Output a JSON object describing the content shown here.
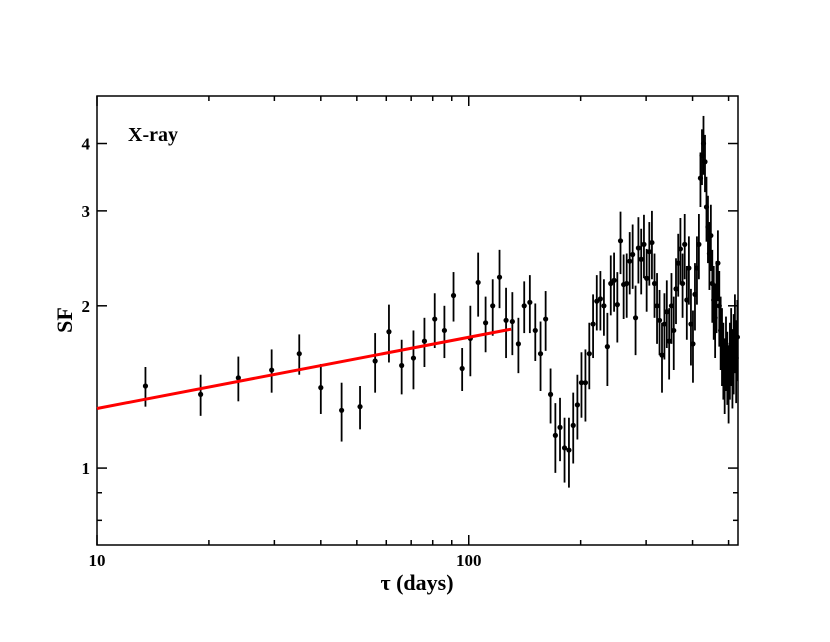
{
  "chart_data": {
    "type": "scatter",
    "annotation": "X-ray",
    "xlabel": "τ  (days)",
    "ylabel": "SF",
    "xscale": "log",
    "yscale": "log",
    "xlim": [
      10,
      530
    ],
    "ylim": [
      0.72,
      4.9
    ],
    "x_ticks": [
      10,
      100
    ],
    "y_ticks": [
      1,
      2,
      3,
      4
    ],
    "grid": false,
    "legend": "none",
    "colors": {
      "points": "#000000",
      "fit": "#ff0000"
    },
    "fit_line": {
      "x": [
        10,
        130
      ],
      "y": [
        1.29,
        1.81
      ]
    },
    "points": [
      {
        "x": 13.5,
        "y": 1.42,
        "e": 0.12
      },
      {
        "x": 19,
        "y": 1.37,
        "e": 0.12
      },
      {
        "x": 24,
        "y": 1.47,
        "e": 0.14
      },
      {
        "x": 29.5,
        "y": 1.52,
        "e": 0.14
      },
      {
        "x": 35,
        "y": 1.63,
        "e": 0.14
      },
      {
        "x": 40,
        "y": 1.41,
        "e": 0.15
      },
      {
        "x": 45.5,
        "y": 1.28,
        "e": 0.16
      },
      {
        "x": 51,
        "y": 1.3,
        "e": 0.12
      },
      {
        "x": 56,
        "y": 1.58,
        "e": 0.2
      },
      {
        "x": 61,
        "y": 1.79,
        "e": 0.22
      },
      {
        "x": 66,
        "y": 1.55,
        "e": 0.18
      },
      {
        "x": 71,
        "y": 1.6,
        "e": 0.2
      },
      {
        "x": 76,
        "y": 1.72,
        "e": 0.18
      },
      {
        "x": 81,
        "y": 1.89,
        "e": 0.22
      },
      {
        "x": 86,
        "y": 1.8,
        "e": 0.2
      },
      {
        "x": 91,
        "y": 2.09,
        "e": 0.22
      },
      {
        "x": 96,
        "y": 1.53,
        "e": 0.14
      },
      {
        "x": 101,
        "y": 1.74,
        "e": 0.26
      },
      {
        "x": 106,
        "y": 2.21,
        "e": 0.3
      },
      {
        "x": 111,
        "y": 1.86,
        "e": 0.22
      },
      {
        "x": 116,
        "y": 2.0,
        "e": 0.24
      },
      {
        "x": 121,
        "y": 2.26,
        "e": 0.28
      },
      {
        "x": 126,
        "y": 1.88,
        "e": 0.28
      },
      {
        "x": 131,
        "y": 1.87,
        "e": 0.25
      },
      {
        "x": 136,
        "y": 1.7,
        "e": 0.2
      },
      {
        "x": 141,
        "y": 2.0,
        "e": 0.22
      },
      {
        "x": 146,
        "y": 2.03,
        "e": 0.25
      },
      {
        "x": 151,
        "y": 1.8,
        "e": 0.22
      },
      {
        "x": 156,
        "y": 1.63,
        "e": 0.24
      },
      {
        "x": 161,
        "y": 1.89,
        "e": 0.24
      },
      {
        "x": 166,
        "y": 1.37,
        "e": 0.16
      },
      {
        "x": 171,
        "y": 1.15,
        "e": 0.17
      },
      {
        "x": 176,
        "y": 1.19,
        "e": 0.16
      },
      {
        "x": 181,
        "y": 1.09,
        "e": 0.15
      },
      {
        "x": 186,
        "y": 1.08,
        "e": 0.16
      },
      {
        "x": 191,
        "y": 1.2,
        "e": 0.18
      },
      {
        "x": 196,
        "y": 1.31,
        "e": 0.18
      },
      {
        "x": 201,
        "y": 1.44,
        "e": 0.2
      },
      {
        "x": 206,
        "y": 1.44,
        "e": 0.22
      },
      {
        "x": 211,
        "y": 1.63,
        "e": 0.23
      },
      {
        "x": 216,
        "y": 1.85,
        "e": 0.25
      },
      {
        "x": 221,
        "y": 2.04,
        "e": 0.24
      },
      {
        "x": 226,
        "y": 2.06,
        "e": 0.26
      },
      {
        "x": 231,
        "y": 2.0,
        "e": 0.24
      },
      {
        "x": 236,
        "y": 1.68,
        "e": 0.26
      },
      {
        "x": 241,
        "y": 2.2,
        "e": 0.28
      },
      {
        "x": 246,
        "y": 2.23,
        "e": 0.28
      },
      {
        "x": 251,
        "y": 2.01,
        "e": 0.3
      },
      {
        "x": 256,
        "y": 2.64,
        "e": 0.35
      },
      {
        "x": 261,
        "y": 2.19,
        "e": 0.3
      },
      {
        "x": 266,
        "y": 2.2,
        "e": 0.3
      },
      {
        "x": 271,
        "y": 2.42,
        "e": 0.32
      },
      {
        "x": 276,
        "y": 2.49,
        "e": 0.34
      },
      {
        "x": 281,
        "y": 1.9,
        "e": 0.28
      },
      {
        "x": 286,
        "y": 2.56,
        "e": 0.36
      },
      {
        "x": 291,
        "y": 2.44,
        "e": 0.34
      },
      {
        "x": 296,
        "y": 2.6,
        "e": 0.35
      },
      {
        "x": 301,
        "y": 2.25,
        "e": 0.3
      },
      {
        "x": 306,
        "y": 2.52,
        "e": 0.34
      },
      {
        "x": 311,
        "y": 2.62,
        "e": 0.38
      },
      {
        "x": 316,
        "y": 2.2,
        "e": 0.3
      },
      {
        "x": 321,
        "y": 2.0,
        "e": 0.3
      },
      {
        "x": 326,
        "y": 1.88,
        "e": 0.26
      },
      {
        "x": 331,
        "y": 1.62,
        "e": 0.24
      },
      {
        "x": 336,
        "y": 1.85,
        "e": 0.26
      },
      {
        "x": 341,
        "y": 1.95,
        "e": 0.28
      },
      {
        "x": 346,
        "y": 1.72,
        "e": 0.26
      },
      {
        "x": 351,
        "y": 2.0,
        "e": 0.3
      },
      {
        "x": 356,
        "y": 1.8,
        "e": 0.28
      },
      {
        "x": 361,
        "y": 2.15,
        "e": 0.3
      },
      {
        "x": 366,
        "y": 2.4,
        "e": 0.32
      },
      {
        "x": 371,
        "y": 2.55,
        "e": 0.36
      },
      {
        "x": 376,
        "y": 2.2,
        "e": 0.3
      },
      {
        "x": 381,
        "y": 2.6,
        "e": 0.36
      },
      {
        "x": 386,
        "y": 2.05,
        "e": 0.32
      },
      {
        "x": 391,
        "y": 2.35,
        "e": 0.34
      },
      {
        "x": 396,
        "y": 1.85,
        "e": 0.3
      },
      {
        "x": 401,
        "y": 1.7,
        "e": 0.26
      },
      {
        "x": 406,
        "y": 2.1,
        "e": 0.3
      },
      {
        "x": 411,
        "y": 2.35,
        "e": 0.34
      },
      {
        "x": 416,
        "y": 2.6,
        "e": 0.36
      },
      {
        "x": 420,
        "y": 3.45,
        "e": 0.4
      },
      {
        "x": 424,
        "y": 3.8,
        "e": 0.45
      },
      {
        "x": 428,
        "y": 4.0,
        "e": 0.5
      },
      {
        "x": 432,
        "y": 3.7,
        "e": 0.45
      },
      {
        "x": 436,
        "y": 3.05,
        "e": 0.42
      },
      {
        "x": 440,
        "y": 2.8,
        "e": 0.4
      },
      {
        "x": 444,
        "y": 2.5,
        "e": 0.36
      },
      {
        "x": 448,
        "y": 2.7,
        "e": 0.38
      },
      {
        "x": 452,
        "y": 2.2,
        "e": 0.34
      },
      {
        "x": 456,
        "y": 2.05,
        "e": 0.32
      },
      {
        "x": 460,
        "y": 1.9,
        "e": 0.3
      },
      {
        "x": 464,
        "y": 2.1,
        "e": 0.32
      },
      {
        "x": 468,
        "y": 2.4,
        "e": 0.36
      },
      {
        "x": 472,
        "y": 2.0,
        "e": 0.32
      },
      {
        "x": 476,
        "y": 1.8,
        "e": 0.28
      },
      {
        "x": 480,
        "y": 1.7,
        "e": 0.28
      },
      {
        "x": 484,
        "y": 1.6,
        "e": 0.26
      },
      {
        "x": 488,
        "y": 1.5,
        "e": 0.24
      },
      {
        "x": 492,
        "y": 1.65,
        "e": 0.26
      },
      {
        "x": 496,
        "y": 1.55,
        "e": 0.24
      },
      {
        "x": 500,
        "y": 1.45,
        "e": 0.24
      },
      {
        "x": 504,
        "y": 1.6,
        "e": 0.26
      },
      {
        "x": 508,
        "y": 1.7,
        "e": 0.28
      },
      {
        "x": 512,
        "y": 1.55,
        "e": 0.26
      },
      {
        "x": 516,
        "y": 1.65,
        "e": 0.28
      },
      {
        "x": 520,
        "y": 1.8,
        "e": 0.3
      },
      {
        "x": 524,
        "y": 1.6,
        "e": 0.28
      },
      {
        "x": 528,
        "y": 1.75,
        "e": 0.3
      }
    ]
  }
}
